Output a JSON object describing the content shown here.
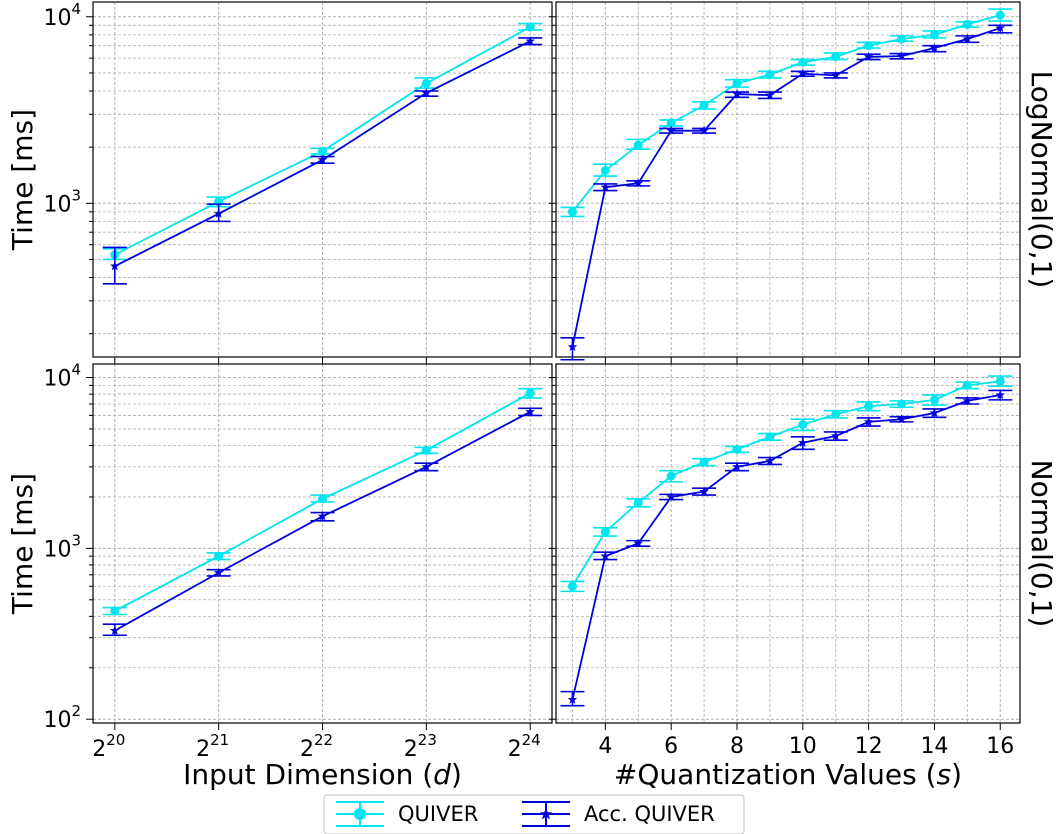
{
  "chart_data": [
    {
      "id": "top-left",
      "type": "line",
      "ylabel": "Time [ms]",
      "xlabel": "",
      "xscale": "log2",
      "yscale": "log",
      "ylim": [
        150,
        12000
      ],
      "x": [
        1048576,
        2097152,
        4194304,
        8388608,
        16777216
      ],
      "xtick_labels": [
        {
          "base": "2",
          "exp": "20"
        },
        {
          "base": "2",
          "exp": "21"
        },
        {
          "base": "2",
          "exp": "22"
        },
        {
          "base": "2",
          "exp": "23"
        },
        {
          "base": "2",
          "exp": "24"
        }
      ],
      "ytick_labels": [
        {
          "value": 1000,
          "base": "10",
          "exp": "3"
        },
        {
          "value": 10000,
          "base": "10",
          "exp": "4"
        }
      ],
      "grid": true,
      "series": [
        {
          "name": "QUIVER",
          "values": [
            530,
            1020,
            1900,
            4400,
            8800
          ],
          "err_low": [
            500,
            960,
            1840,
            4150,
            8500
          ],
          "err_high": [
            570,
            1080,
            1970,
            4700,
            9200
          ]
        },
        {
          "name": "Acc. QUIVER",
          "values": [
            460,
            880,
            1710,
            3900,
            7400
          ],
          "err_low": [
            370,
            800,
            1640,
            3750,
            7100
          ],
          "err_high": [
            580,
            990,
            1780,
            4000,
            7700
          ]
        }
      ]
    },
    {
      "id": "top-right",
      "type": "line",
      "ylabel": "",
      "xlabel": "",
      "side_label": "LogNormal(0,1)",
      "xscale": "linear",
      "yscale": "log",
      "xlim": [
        2.5,
        16.6
      ],
      "ylim": [
        150,
        12000
      ],
      "x": [
        3,
        4,
        5,
        6,
        7,
        8,
        9,
        10,
        11,
        12,
        13,
        14,
        15,
        16
      ],
      "xticks": [
        4,
        6,
        8,
        10,
        12,
        14,
        16
      ],
      "grid": true,
      "series": [
        {
          "name": "QUIVER",
          "values": [
            900,
            1500,
            2050,
            2700,
            3350,
            4400,
            4900,
            5700,
            6100,
            7000,
            7600,
            8000,
            9100,
            10200
          ],
          "err_low": [
            850,
            1400,
            1950,
            2600,
            3200,
            4200,
            4700,
            5500,
            5900,
            6800,
            7400,
            7700,
            8800,
            9500
          ],
          "err_high": [
            950,
            1620,
            2200,
            2800,
            3500,
            4600,
            5100,
            5900,
            6400,
            7300,
            7900,
            8400,
            9400,
            11000
          ]
        },
        {
          "name": "Acc. QUIVER",
          "values": [
            170,
            1220,
            1280,
            2450,
            2450,
            3850,
            3800,
            4950,
            4850,
            6100,
            6150,
            6800,
            7600,
            8700
          ],
          "err_low": [
            145,
            1170,
            1240,
            2380,
            2380,
            3700,
            3650,
            4800,
            4700,
            5900,
            5950,
            6500,
            7300,
            8200
          ],
          "err_high": [
            190,
            1270,
            1320,
            2520,
            2520,
            3950,
            3950,
            5100,
            5000,
            6300,
            6350,
            7000,
            7900,
            9000
          ]
        }
      ]
    },
    {
      "id": "bottom-left",
      "type": "line",
      "ylabel": "Time [ms]",
      "xlabel": "Input Dimension",
      "xlabel_var": "d",
      "xscale": "log2",
      "yscale": "log",
      "ylim": [
        95,
        12000
      ],
      "x": [
        1048576,
        2097152,
        4194304,
        8388608,
        16777216
      ],
      "xtick_labels": [
        {
          "base": "2",
          "exp": "20"
        },
        {
          "base": "2",
          "exp": "21"
        },
        {
          "base": "2",
          "exp": "22"
        },
        {
          "base": "2",
          "exp": "23"
        },
        {
          "base": "2",
          "exp": "24"
        }
      ],
      "ytick_labels": [
        {
          "value": 100,
          "base": "10",
          "exp": "2"
        },
        {
          "value": 1000,
          "base": "10",
          "exp": "3"
        },
        {
          "value": 10000,
          "base": "10",
          "exp": "4"
        }
      ],
      "grid": true,
      "series": [
        {
          "name": "QUIVER",
          "values": [
            430,
            900,
            1950,
            3750,
            8100
          ],
          "err_low": [
            410,
            860,
            1870,
            3600,
            7600
          ],
          "err_high": [
            450,
            940,
            2050,
            3900,
            8600
          ]
        },
        {
          "name": "Acc. QUIVER",
          "values": [
            330,
            720,
            1540,
            3000,
            6300
          ],
          "err_low": [
            310,
            690,
            1450,
            2850,
            6000
          ],
          "err_high": [
            360,
            750,
            1620,
            3150,
            6600
          ]
        }
      ]
    },
    {
      "id": "bottom-right",
      "type": "line",
      "ylabel": "",
      "xlabel": "#Quantization Values",
      "xlabel_var": "s",
      "side_label": "Normal(0,1)",
      "xscale": "linear",
      "yscale": "log",
      "xlim": [
        2.5,
        16.6
      ],
      "ylim": [
        95,
        12000
      ],
      "x": [
        3,
        4,
        5,
        6,
        7,
        8,
        9,
        10,
        11,
        12,
        13,
        14,
        15,
        16
      ],
      "xticks": [
        4,
        6,
        8,
        10,
        12,
        14,
        16
      ],
      "grid": true,
      "series": [
        {
          "name": "QUIVER",
          "values": [
            600,
            1250,
            1850,
            2650,
            3200,
            3800,
            4500,
            5300,
            6100,
            6800,
            7000,
            7400,
            9000,
            9500
          ],
          "err_low": [
            560,
            1180,
            1750,
            2450,
            3050,
            3650,
            4300,
            4900,
            5800,
            6400,
            6700,
            6900,
            8600,
            8900
          ],
          "err_high": [
            640,
            1320,
            1950,
            2850,
            3350,
            3950,
            4700,
            5700,
            6400,
            7200,
            7300,
            7900,
            9400,
            10200
          ]
        },
        {
          "name": "Acc. QUIVER",
          "values": [
            130,
            900,
            1070,
            2000,
            2150,
            3000,
            3250,
            4150,
            4550,
            5500,
            5700,
            6200,
            7300,
            7900
          ],
          "err_low": [
            120,
            860,
            1030,
            1930,
            2050,
            2850,
            3100,
            3800,
            4300,
            5200,
            5500,
            5850,
            7000,
            7400
          ],
          "err_high": [
            145,
            950,
            1110,
            2070,
            2250,
            3150,
            3400,
            4500,
            4800,
            5800,
            5900,
            6550,
            7600,
            8400
          ]
        }
      ]
    }
  ],
  "legend": {
    "placement": "bottom-center",
    "entries": [
      {
        "label": "QUIVER",
        "color": "#00e5ee",
        "marker": "circle"
      },
      {
        "label": "Acc. QUIVER",
        "color": "#0000dd",
        "marker": "star"
      }
    ]
  },
  "colors": {
    "quiver": "#00e5ee",
    "acc_quiver": "#0000dd",
    "grid": "#b0b0b0",
    "axes": "#000000"
  }
}
